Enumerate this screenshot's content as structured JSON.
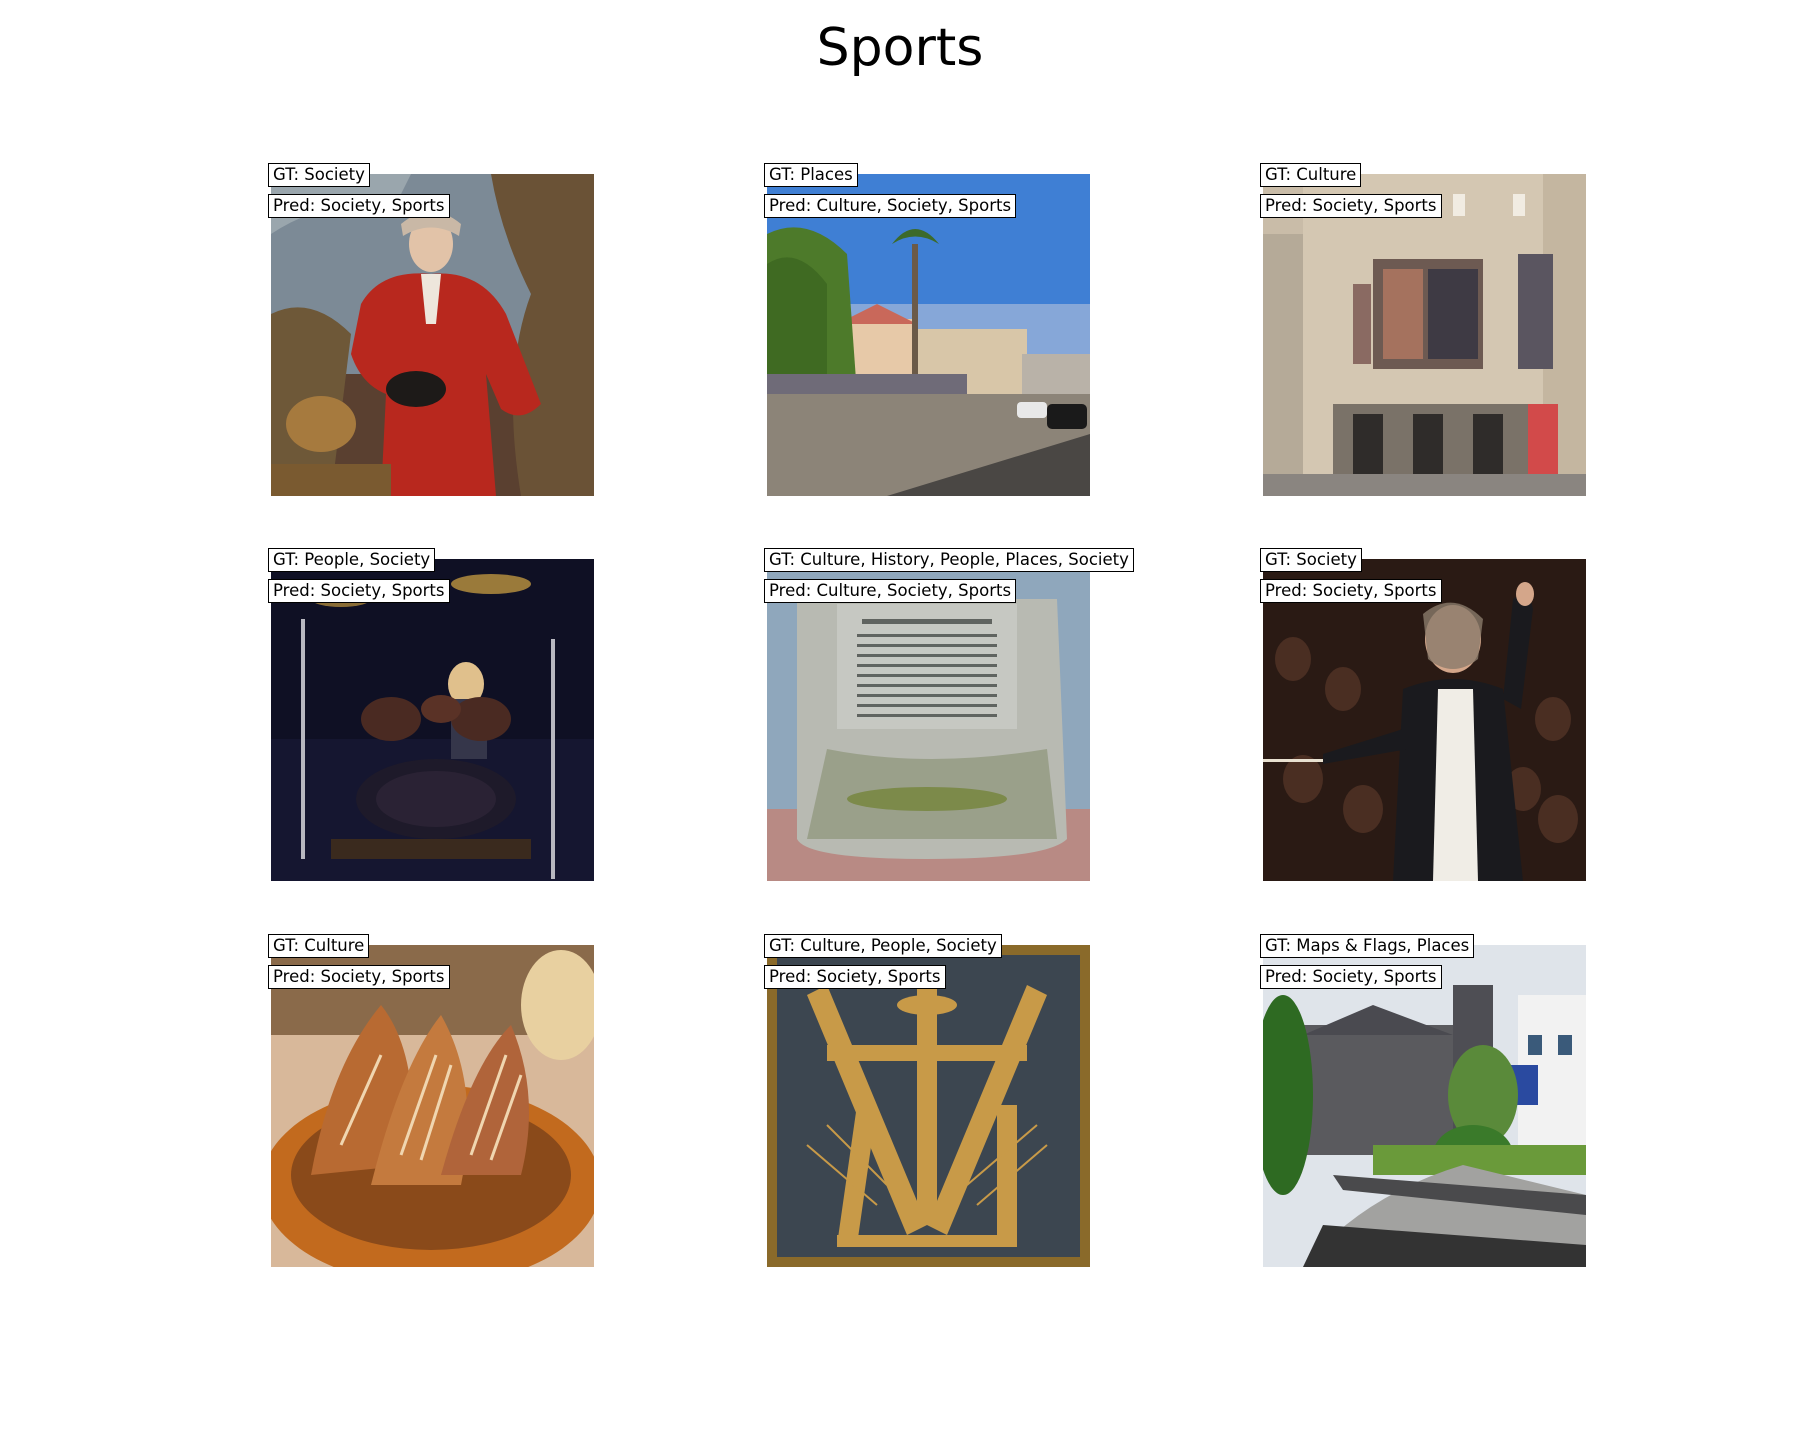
{
  "title": "Sports",
  "panels": [
    {
      "gt": "GT: Society",
      "pred": "Pred: Society, Sports",
      "image": "portrait painting of man in red coat"
    },
    {
      "gt": "GT: Places",
      "pred": "Pred: Culture, Society, Sports",
      "image": "sunny street with palm tree and buildings"
    },
    {
      "gt": "GT: Culture",
      "pred": "Pred: Society, Sports",
      "image": "theatre facade with posters"
    },
    {
      "gt": "GT: People, Society",
      "pred": "Pred: Society, Sports",
      "image": "drummer on stage with drum kit"
    },
    {
      "gt": "GT: Culture, History, People, Places, Society",
      "pred": "Pred: Culture, Society, Sports",
      "image": "stone memorial plaque"
    },
    {
      "gt": "GT: Society",
      "pred": "Pred: Society, Sports",
      "image": "conductor in front of audience"
    },
    {
      "gt": "GT: Culture",
      "pred": "Pred: Society, Sports",
      "image": "roasted meat in wooden bowl"
    },
    {
      "gt": "GT: Culture, People, Society",
      "pred": "Pred: Society, Sports",
      "image": "golden crucifix relief on dark plaque"
    },
    {
      "gt": "GT: Maps & Flags, Places",
      "pred": "Pred: Society, Sports",
      "image": "stone church with garden and path"
    }
  ]
}
